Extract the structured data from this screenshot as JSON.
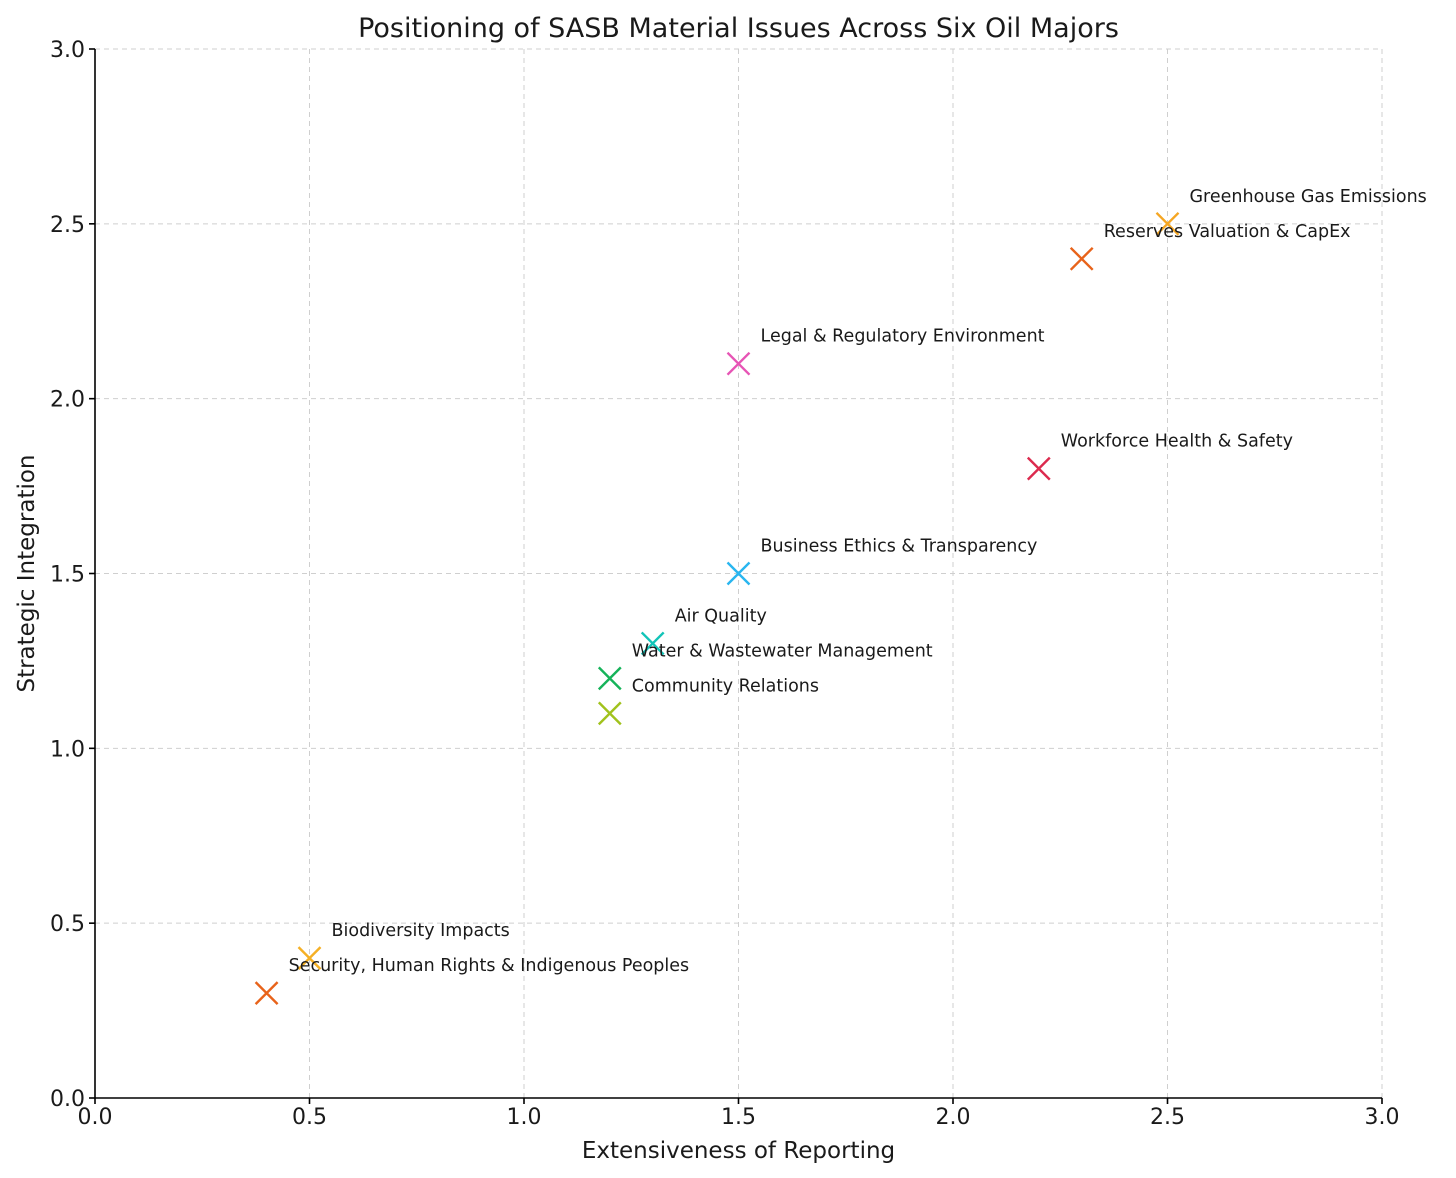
{
  "chart_data": {
    "type": "scatter",
    "title": "Positioning of SASB Material Issues Across Six Oil Majors",
    "xlabel": "Extensiveness of Reporting",
    "ylabel": "Strategic Integration",
    "xlim": [
      0,
      3
    ],
    "ylim": [
      0,
      3
    ],
    "xticks": [
      "0.0",
      "0.5",
      "1.0",
      "1.5",
      "2.0",
      "2.5",
      "3.0"
    ],
    "yticks": [
      "0.0",
      "0.5",
      "1.0",
      "1.5",
      "2.0",
      "2.5",
      "3.0"
    ],
    "grid": true,
    "marker": "x",
    "points": [
      {
        "label": "Greenhouse Gas Emissions",
        "x": 2.5,
        "y": 2.5,
        "color": "#f5a623"
      },
      {
        "label": "Reserves Valuation & CapEx",
        "x": 2.3,
        "y": 2.4,
        "color": "#e8631a"
      },
      {
        "label": "Legal & Regulatory Environment",
        "x": 1.5,
        "y": 2.1,
        "color": "#e754b5"
      },
      {
        "label": "Workforce Health & Safety",
        "x": 2.2,
        "y": 1.8,
        "color": "#dc2a4e"
      },
      {
        "label": "Business Ethics & Transparency",
        "x": 1.5,
        "y": 1.5,
        "color": "#29b6f0"
      },
      {
        "label": "Air Quality",
        "x": 1.3,
        "y": 1.3,
        "color": "#12c4b8"
      },
      {
        "label": "Water & Wastewater Management",
        "x": 1.2,
        "y": 1.2,
        "color": "#16b35a"
      },
      {
        "label": "Community Relations",
        "x": 1.2,
        "y": 1.1,
        "color": "#a1c21c"
      },
      {
        "label": "Biodiversity Impacts",
        "x": 0.5,
        "y": 0.4,
        "color": "#f5b025"
      },
      {
        "label": "Security, Human Rights & Indigenous Peoples",
        "x": 0.4,
        "y": 0.3,
        "color": "#e8631a"
      }
    ]
  }
}
